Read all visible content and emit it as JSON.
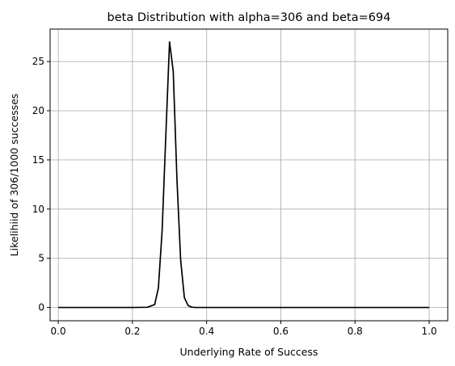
{
  "chart_data": {
    "type": "line",
    "title": "beta Distribution with alpha=306 and beta=694",
    "xlabel": "Underlying Rate of Success",
    "ylabel": "Likelihiid of 306/1000 successes",
    "xlim": [
      -0.022,
      1.05
    ],
    "ylim": [
      -1.35,
      28.3
    ],
    "xticks": [
      0.0,
      0.2,
      0.4,
      0.6,
      0.8,
      1.0
    ],
    "xtick_labels": [
      "0.0",
      "0.2",
      "0.4",
      "0.6",
      "0.8",
      "1.0"
    ],
    "yticks": [
      0,
      5,
      10,
      15,
      20,
      25
    ],
    "ytick_labels": [
      "0",
      "5",
      "10",
      "15",
      "20",
      "25"
    ],
    "grid": true,
    "line_color": "#000000",
    "grid_color": "#b0b0b0",
    "series": [
      {
        "x": [
          0.0,
          0.04,
          0.08,
          0.12,
          0.16,
          0.2,
          0.24,
          0.26,
          0.27,
          0.28,
          0.29,
          0.3,
          0.31,
          0.32,
          0.33,
          0.34,
          0.35,
          0.36,
          0.37,
          0.4,
          0.5,
          0.6,
          0.7,
          0.8,
          0.9,
          1.0
        ],
        "y": [
          0,
          0,
          0,
          0,
          0,
          0,
          0.02,
          0.3,
          2.0,
          7.8,
          17.5,
          27.0,
          24.0,
          13.0,
          4.8,
          1.0,
          0.2,
          0.03,
          0,
          0,
          0,
          0,
          0,
          0,
          0,
          0
        ]
      }
    ]
  }
}
